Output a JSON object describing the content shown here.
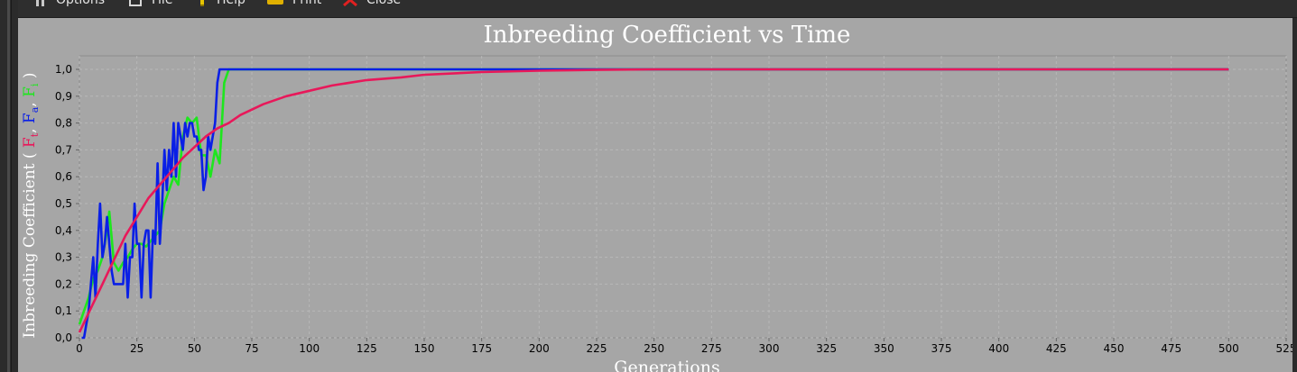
{
  "toolbar": {
    "items": [
      {
        "label": "Options",
        "icon": "options-icon"
      },
      {
        "label": "File",
        "icon": "file-icon"
      },
      {
        "label": "Help",
        "icon": "help-icon"
      },
      {
        "label": "Print",
        "icon": "print-icon"
      },
      {
        "label": "Close",
        "icon": "close-icon"
      }
    ]
  },
  "colors": {
    "panel_bg": "#a6a6a6",
    "plot_bg": "#a6a6a6",
    "series_ft": "#e8185a",
    "series_fa": "#0a1fe6",
    "series_fi": "#1ee61e",
    "text": "#ffffff",
    "axis_text": "#000000"
  },
  "chart_data": {
    "type": "line",
    "title": "Inbreeding Coefficient vs Time",
    "xlabel": "Generations",
    "ylabel_prefix": "Inbreeding Coefficient ( ",
    "ylabel_parts": [
      {
        "text": "F",
        "sub": "t",
        "color": "#e8185a"
      },
      {
        "text": "F",
        "sub": "a",
        "color": "#0a1fe6"
      },
      {
        "text": "F",
        "sub": "i",
        "color": "#1ee61e"
      }
    ],
    "ylabel_sep": ", ",
    "ylabel_suffix": " )",
    "xlim": [
      0,
      525
    ],
    "ylim": [
      0,
      1.0
    ],
    "xticks": [
      0,
      25,
      50,
      75,
      100,
      125,
      150,
      175,
      200,
      225,
      250,
      275,
      300,
      325,
      350,
      375,
      400,
      425,
      450,
      475,
      500,
      525
    ],
    "yticks": [
      "0,0",
      "0,1",
      "0,2",
      "0,3",
      "0,4",
      "0,5",
      "0,6",
      "0,7",
      "0,8",
      "0,9",
      "1,0"
    ],
    "grid": true,
    "series": [
      {
        "color": "#1ee61e",
        "x": [
          0,
          2,
          4,
          6,
          8,
          10,
          12,
          13,
          15,
          17,
          19,
          21,
          23,
          25,
          27,
          29,
          31,
          33,
          35,
          37,
          39,
          41,
          43,
          45,
          47,
          49,
          51,
          53,
          55,
          57,
          59,
          61,
          62,
          63,
          65,
          100,
          200,
          300,
          400,
          500
        ],
        "y": [
          0.05,
          0.1,
          0.15,
          0.22,
          0.25,
          0.3,
          0.4,
          0.47,
          0.28,
          0.25,
          0.28,
          0.3,
          0.33,
          0.35,
          0.35,
          0.34,
          0.36,
          0.38,
          0.4,
          0.5,
          0.55,
          0.6,
          0.57,
          0.75,
          0.82,
          0.8,
          0.82,
          0.68,
          0.68,
          0.6,
          0.7,
          0.65,
          0.8,
          0.95,
          1.0,
          1.0,
          1.0,
          1.0,
          1.0,
          1.0
        ]
      },
      {
        "color": "#0a1fe6",
        "x": [
          1,
          2,
          3,
          4,
          5,
          6,
          7,
          8,
          9,
          10,
          11,
          12,
          13,
          14,
          15,
          16,
          17,
          18,
          19,
          20,
          21,
          22,
          23,
          24,
          25,
          26,
          27,
          28,
          29,
          30,
          31,
          32,
          33,
          34,
          35,
          36,
          37,
          38,
          39,
          40,
          41,
          42,
          43,
          44,
          45,
          46,
          47,
          48,
          49,
          50,
          51,
          52,
          53,
          54,
          55,
          56,
          57,
          58,
          59,
          60,
          61,
          62,
          63,
          64,
          65,
          100,
          200,
          300,
          400,
          500
        ],
        "y": [
          0.0,
          0.0,
          0.05,
          0.1,
          0.2,
          0.3,
          0.15,
          0.35,
          0.5,
          0.3,
          0.35,
          0.45,
          0.35,
          0.25,
          0.2,
          0.2,
          0.2,
          0.2,
          0.2,
          0.35,
          0.15,
          0.3,
          0.3,
          0.5,
          0.35,
          0.35,
          0.15,
          0.35,
          0.4,
          0.4,
          0.15,
          0.4,
          0.35,
          0.65,
          0.35,
          0.5,
          0.7,
          0.55,
          0.7,
          0.6,
          0.8,
          0.6,
          0.8,
          0.75,
          0.7,
          0.8,
          0.75,
          0.8,
          0.8,
          0.75,
          0.75,
          0.7,
          0.7,
          0.55,
          0.6,
          0.75,
          0.7,
          0.75,
          0.8,
          0.95,
          1.0,
          1.0,
          1.0,
          1.0,
          1.0,
          1.0,
          1.0,
          1.0,
          1.0,
          1.0
        ],
        "x_offset_note": ""
      },
      {
        "color": "#e8185a",
        "x": [
          0,
          5,
          10,
          15,
          20,
          25,
          30,
          35,
          40,
          45,
          50,
          55,
          60,
          65,
          70,
          75,
          80,
          90,
          100,
          110,
          125,
          140,
          150,
          175,
          200,
          225,
          250,
          300,
          350,
          400,
          450,
          500
        ],
        "y": [
          0.02,
          0.11,
          0.2,
          0.29,
          0.38,
          0.45,
          0.52,
          0.57,
          0.62,
          0.67,
          0.71,
          0.75,
          0.78,
          0.8,
          0.83,
          0.85,
          0.87,
          0.9,
          0.92,
          0.94,
          0.96,
          0.97,
          0.98,
          0.99,
          0.995,
          0.998,
          1.0,
          1.0,
          1.0,
          1.0,
          1.0,
          1.0
        ]
      }
    ]
  }
}
